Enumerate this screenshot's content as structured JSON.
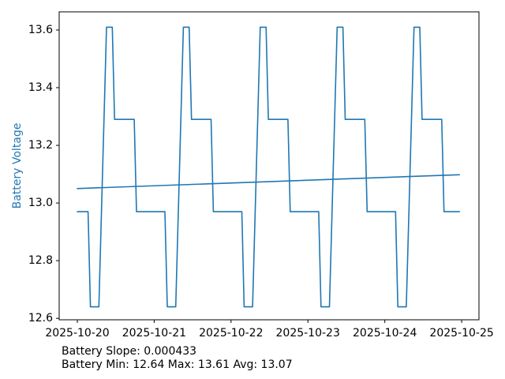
{
  "figure": {
    "background": "#ffffff",
    "accent_color": "#1f77b4",
    "spine_color": "#000000",
    "tick_label_color": "#000000"
  },
  "chart_data": {
    "type": "line",
    "title": "",
    "xlabel": "",
    "ylabel": "Battery Voltage",
    "ylabel_color": "#1f77b4",
    "grid": false,
    "legend": "none",
    "x_tick_labels": [
      "2025-10-20",
      "2025-10-21",
      "2025-10-22",
      "2025-10-23",
      "2025-10-24",
      "2025-10-25"
    ],
    "x_tick_days": [
      0,
      1,
      2,
      3,
      4,
      5
    ],
    "y_tick_labels": [
      "12.6",
      "12.8",
      "13.0",
      "13.2",
      "13.4",
      "13.6"
    ],
    "y_tick_values": [
      12.6,
      12.8,
      13.0,
      13.2,
      13.4,
      13.6
    ],
    "xlim_days": [
      -0.236,
      5.225
    ],
    "ylim": [
      12.595,
      13.663
    ],
    "series": [
      {
        "name": "battery-voltage-steps",
        "color": "#1f77b4",
        "linewidth": 1.6,
        "points": [
          [
            0.0,
            12.97
          ],
          [
            0.14,
            12.97
          ],
          [
            0.17,
            12.64
          ],
          [
            0.28,
            12.64
          ],
          [
            0.38,
            13.61
          ],
          [
            0.455,
            13.61
          ],
          [
            0.485,
            13.29
          ],
          [
            0.74,
            13.29
          ],
          [
            0.77,
            12.97
          ],
          [
            1.14,
            12.97
          ],
          [
            1.17,
            12.64
          ],
          [
            1.28,
            12.64
          ],
          [
            1.38,
            13.61
          ],
          [
            1.455,
            13.61
          ],
          [
            1.485,
            13.29
          ],
          [
            1.74,
            13.29
          ],
          [
            1.77,
            12.97
          ],
          [
            2.14,
            12.97
          ],
          [
            2.17,
            12.64
          ],
          [
            2.28,
            12.64
          ],
          [
            2.38,
            13.61
          ],
          [
            2.455,
            13.61
          ],
          [
            2.485,
            13.29
          ],
          [
            2.74,
            13.29
          ],
          [
            2.77,
            12.97
          ],
          [
            3.14,
            12.97
          ],
          [
            3.17,
            12.64
          ],
          [
            3.28,
            12.64
          ],
          [
            3.38,
            13.61
          ],
          [
            3.455,
            13.61
          ],
          [
            3.485,
            13.29
          ],
          [
            3.74,
            13.29
          ],
          [
            3.77,
            12.97
          ],
          [
            4.14,
            12.97
          ],
          [
            4.17,
            12.64
          ],
          [
            4.28,
            12.64
          ],
          [
            4.38,
            13.61
          ],
          [
            4.455,
            13.61
          ],
          [
            4.485,
            13.29
          ],
          [
            4.74,
            13.29
          ],
          [
            4.77,
            12.97
          ],
          [
            4.97,
            12.97
          ]
        ]
      },
      {
        "name": "battery-voltage-trend",
        "color": "#1f77b4",
        "linewidth": 1.6,
        "points": [
          [
            0.0,
            13.05
          ],
          [
            4.97,
            13.098
          ]
        ]
      }
    ],
    "stats": {
      "slope": "0.000433",
      "min": "12.64",
      "max": "13.61",
      "avg": "13.07"
    }
  },
  "annotations": {
    "line1": "Battery Slope: 0.000433",
    "line2": "Battery Min: 12.64 Max: 13.61 Avg: 13.07"
  }
}
